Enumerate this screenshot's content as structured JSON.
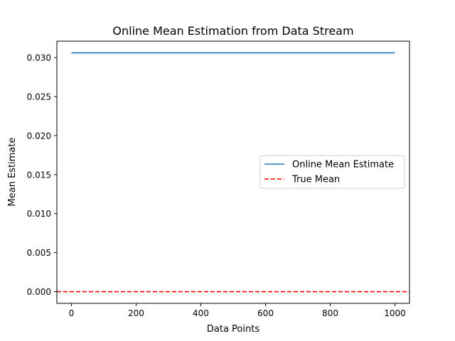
{
  "chart_data": {
    "type": "line",
    "title": "Online Mean Estimation from Data Stream",
    "xlabel": "Data Points",
    "ylabel": "Mean Estimate",
    "xlim": [
      -45,
      1045
    ],
    "ylim": [
      -0.0015,
      0.0321
    ],
    "x_ticks": [
      0,
      200,
      400,
      600,
      800,
      1000
    ],
    "x_tick_labels": [
      "0",
      "200",
      "400",
      "600",
      "800",
      "1000"
    ],
    "y_ticks": [
      0.0,
      0.005,
      0.01,
      0.015,
      0.02,
      0.025,
      0.03
    ],
    "y_tick_labels": [
      "0.000",
      "0.005",
      "0.010",
      "0.015",
      "0.020",
      "0.025",
      "0.030"
    ],
    "grid": false,
    "legend_position": "center-right",
    "series": [
      {
        "name": "Online Mean Estimate",
        "style": "solid",
        "color": "#1f77b4",
        "x": [
          0,
          1000
        ],
        "y": [
          0.0306,
          0.0306
        ]
      },
      {
        "name": "True Mean",
        "style": "dashed",
        "color": "#ff0000",
        "x": [
          -45,
          1045
        ],
        "y": [
          0.0,
          0.0
        ]
      }
    ]
  }
}
